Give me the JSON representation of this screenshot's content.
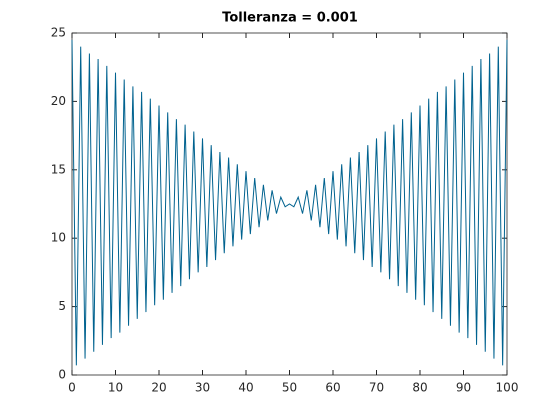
{
  "chart_data": {
    "type": "line",
    "title": "Tolleranza = 0.001",
    "x": [
      0,
      1,
      2,
      3,
      4,
      5,
      6,
      7,
      8,
      9,
      10,
      11,
      12,
      13,
      14,
      15,
      16,
      17,
      18,
      19,
      20,
      21,
      22,
      23,
      24,
      25,
      26,
      27,
      28,
      29,
      30,
      31,
      32,
      33,
      34,
      35,
      36,
      37,
      38,
      39,
      40,
      41,
      42,
      43,
      44,
      45,
      46,
      47,
      48,
      49,
      50,
      51,
      52,
      53,
      54,
      55,
      56,
      57,
      58,
      59,
      60,
      61,
      62,
      63,
      64,
      65,
      66,
      67,
      68,
      69,
      70,
      71,
      72,
      73,
      74,
      75,
      76,
      77,
      78,
      79,
      80,
      81,
      82,
      83,
      84,
      85,
      86,
      87,
      88,
      89,
      90,
      91,
      92,
      93,
      94,
      95,
      96,
      97,
      98,
      99,
      100
    ],
    "series": [
      {
        "color": "#00628f",
        "values": [
          24.5,
          0.7,
          24.0,
          1.2,
          23.5,
          1.7,
          23.1,
          2.2,
          22.6,
          2.7,
          22.1,
          3.1,
          21.6,
          3.6,
          21.1,
          4.1,
          20.7,
          4.6,
          20.2,
          5.1,
          19.7,
          5.5,
          19.2,
          6.0,
          18.7,
          6.5,
          18.3,
          7.0,
          17.8,
          7.5,
          17.3,
          7.9,
          16.8,
          8.4,
          16.3,
          8.9,
          15.9,
          9.4,
          15.4,
          9.9,
          14.9,
          10.3,
          14.4,
          10.8,
          13.9,
          11.3,
          13.5,
          11.8,
          13.0,
          12.3,
          12.5,
          12.3,
          13.0,
          11.8,
          13.5,
          11.3,
          13.9,
          10.8,
          14.4,
          10.3,
          14.9,
          9.9,
          15.4,
          9.4,
          15.9,
          8.9,
          16.3,
          8.4,
          16.8,
          7.9,
          17.3,
          7.5,
          17.8,
          7.0,
          18.3,
          6.5,
          18.7,
          6.0,
          19.2,
          5.5,
          19.7,
          5.1,
          20.2,
          4.6,
          20.7,
          4.1,
          21.1,
          3.6,
          21.6,
          3.1,
          22.1,
          2.7,
          22.6,
          2.2,
          23.1,
          1.7,
          23.5,
          1.2,
          24.0,
          0.7,
          24.5
        ]
      }
    ],
    "xlim": [
      0,
      100
    ],
    "xticks": [
      0,
      10,
      20,
      30,
      40,
      50,
      60,
      70,
      80,
      90,
      100
    ],
    "ylim": [
      0,
      25
    ],
    "yticks": [
      0,
      5,
      10,
      15,
      20,
      25
    ],
    "grid": false
  }
}
